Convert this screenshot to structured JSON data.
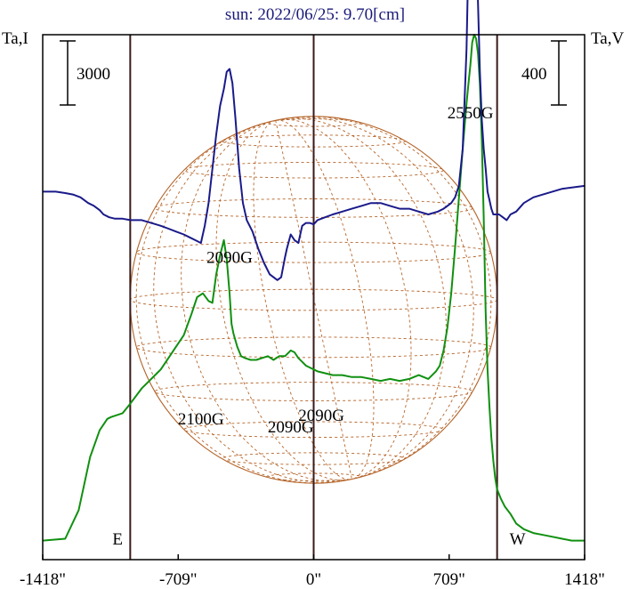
{
  "chart_data": {
    "type": "line",
    "title": "sun: 2022/06/25: 9.70[cm]",
    "left_axis_label": "Ta,I",
    "right_axis_label": "Ta,V",
    "left_scale_bar": "3000",
    "right_scale_bar": "400",
    "x_ticks": [
      {
        "value": -1418,
        "label": "-1418\""
      },
      {
        "value": -709,
        "label": "-709\""
      },
      {
        "value": 0,
        "label": "0\""
      },
      {
        "value": 709,
        "label": "709\""
      },
      {
        "value": 1418,
        "label": "1418\""
      }
    ],
    "xlim": [
      -1418,
      1418
    ],
    "limb_markers": [
      {
        "label": "E",
        "x": -960
      },
      {
        "label": "W",
        "x": 960
      }
    ],
    "center_line_x": 0,
    "solar_disk": {
      "radius_arcsec": 960,
      "color": "#b5652a",
      "grid": "dashed"
    },
    "ylim_I": [
      0,
      13800
    ],
    "ylim_V": [
      -1290,
      550
    ],
    "annotations": [
      {
        "text": "2550G",
        "x": 820,
        "y_I": 11600
      },
      {
        "text": "2090G",
        "x": -440,
        "y_I": 7800
      },
      {
        "text": "2100G",
        "x": -590,
        "y_I": 3550
      },
      {
        "text": "2090G",
        "x": -120,
        "y_I": 3350
      },
      {
        "text": "2090G",
        "x": 40,
        "y_I": 3650
      }
    ],
    "series": [
      {
        "color": "#109010",
        "x": [
          -1418,
          -1300,
          -1230,
          -1170,
          -1120,
          -1080,
          -1060,
          -1000,
          -960,
          -900,
          -860,
          -820,
          -800,
          -760,
          -720,
          -680,
          -640,
          -610,
          -580,
          -550,
          -530,
          -510,
          -490,
          -470,
          -455,
          -440,
          -430,
          -420,
          -400,
          -380,
          -360,
          -330,
          -300,
          -270,
          -240,
          -210,
          -180,
          -150,
          -120,
          -100,
          -80,
          -60,
          -40,
          -20,
          0,
          20,
          60,
          100,
          150,
          200,
          250,
          300,
          350,
          400,
          450,
          500,
          550,
          600,
          640,
          660,
          680,
          700,
          720,
          740,
          760,
          780,
          800,
          810,
          820,
          830,
          840,
          850,
          860,
          870,
          880,
          890,
          900,
          910,
          920,
          930,
          940,
          950,
          960,
          980,
          1000,
          1030,
          1060,
          1100,
          1150,
          1200,
          1250,
          1300,
          1350,
          1418
        ],
        "values": [
          500,
          550,
          1300,
          2700,
          3400,
          3700,
          3750,
          3850,
          4100,
          4500,
          4700,
          4900,
          5000,
          5300,
          5600,
          5900,
          6450,
          6900,
          7000,
          6800,
          6750,
          7500,
          8000,
          8400,
          7900,
          7000,
          6200,
          5950,
          5600,
          5350,
          5300,
          5250,
          5250,
          5300,
          5350,
          5250,
          5350,
          5350,
          5500,
          5450,
          5300,
          5200,
          5100,
          5050,
          5000,
          4950,
          4900,
          4850,
          4850,
          4800,
          4800,
          4750,
          4700,
          4750,
          4700,
          4750,
          4850,
          4750,
          4950,
          5100,
          5500,
          6100,
          7000,
          8200,
          9500,
          10800,
          12000,
          12500,
          13000,
          13600,
          13800,
          13700,
          13300,
          12500,
          11000,
          9000,
          6500,
          5000,
          4000,
          3200,
          2600,
          2150,
          1850,
          1600,
          1400,
          1200,
          950,
          800,
          700,
          650,
          600,
          550,
          500,
          500
        ],
        "axis": "I"
      },
      {
        "color": "#1a1a8a",
        "x": [
          -1418,
          -1350,
          -1300,
          -1260,
          -1220,
          -1180,
          -1150,
          -1120,
          -1100,
          -1070,
          -1040,
          -1000,
          -960,
          -900,
          -850,
          -800,
          -760,
          -720,
          -680,
          -650,
          -620,
          -590,
          -570,
          -550,
          -530,
          -510,
          -490,
          -470,
          -455,
          -440,
          -425,
          -410,
          -390,
          -370,
          -350,
          -320,
          -290,
          -260,
          -230,
          -210,
          -190,
          -170,
          -150,
          -140,
          -120,
          -100,
          -80,
          -60,
          -40,
          -20,
          0,
          20,
          60,
          100,
          150,
          200,
          250,
          300,
          350,
          400,
          450,
          500,
          550,
          600,
          650,
          680,
          700,
          720,
          740,
          760,
          780,
          800,
          810,
          820,
          830,
          840,
          850,
          860,
          870,
          880,
          890,
          900,
          910,
          920,
          930,
          940,
          950,
          960,
          970,
          990,
          1010,
          1030,
          1060,
          1100,
          1150,
          1200,
          1300,
          1418
        ],
        "values": [
          0,
          0,
          -5,
          -10,
          -20,
          -40,
          -50,
          -65,
          -80,
          -90,
          -95,
          -95,
          -100,
          -100,
          -110,
          -120,
          -130,
          -140,
          -150,
          -160,
          -170,
          -180,
          -120,
          -40,
          80,
          200,
          300,
          360,
          420,
          430,
          380,
          260,
          80,
          -40,
          -100,
          -140,
          -200,
          -250,
          -290,
          -300,
          -310,
          -300,
          -230,
          -200,
          -150,
          -170,
          -180,
          -120,
          -110,
          -110,
          -115,
          -100,
          -90,
          -80,
          -70,
          -60,
          -50,
          -40,
          -40,
          -50,
          -60,
          -60,
          -70,
          -80,
          -70,
          -60,
          -50,
          -40,
          -20,
          20,
          150,
          500,
          820,
          1020,
          1070,
          1000,
          860,
          660,
          420,
          250,
          150,
          80,
          0,
          -30,
          -60,
          -80,
          -80,
          -80,
          -80,
          -90,
          -100,
          -80,
          -70,
          -40,
          -20,
          -10,
          10,
          20
        ],
        "axis": "V"
      }
    ]
  }
}
